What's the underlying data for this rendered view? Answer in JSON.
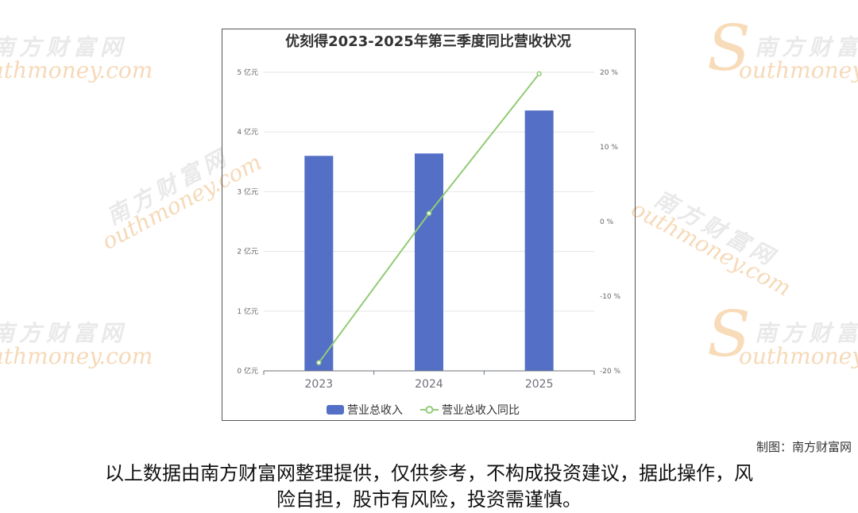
{
  "chart_data": {
    "type": "bar",
    "title": "优刻得2023-2025年第三季度同比营收状况",
    "categories": [
      "2023",
      "2024",
      "2025"
    ],
    "series": [
      {
        "name": "营业总收入",
        "type": "bar",
        "axis": "left",
        "unit": "亿元",
        "color": "#5470c6",
        "values": [
          3.6,
          3.64,
          4.36
        ]
      },
      {
        "name": "营业总收入同比",
        "type": "line",
        "axis": "right",
        "unit": "%",
        "color": "#91cc75",
        "values": [
          -18.9,
          1.1,
          19.8
        ]
      }
    ],
    "left_axis": {
      "ylim": [
        0,
        5
      ],
      "ticks": [
        "0 亿元",
        "1 亿元",
        "2 亿元",
        "3 亿元",
        "4 亿元",
        "5 亿元"
      ]
    },
    "right_axis": {
      "ylim": [
        -20,
        20
      ],
      "ticks": [
        "-20 %",
        "-10 %",
        "0 %",
        "10 %",
        "20 %"
      ]
    },
    "grid": true,
    "legend": "bottom-center"
  },
  "watermark": {
    "cn": "南方财富网",
    "en": "outhmoney.com",
    "s": "S"
  },
  "footer": {
    "credit": "制图：南方财富网",
    "disclaimer_line1": "以上数据由南方财富网整理提供，仅供参考，不构成投资建议，据此操作，风",
    "disclaimer_line2": "险自担，股市有风险，投资需谨慎。"
  }
}
